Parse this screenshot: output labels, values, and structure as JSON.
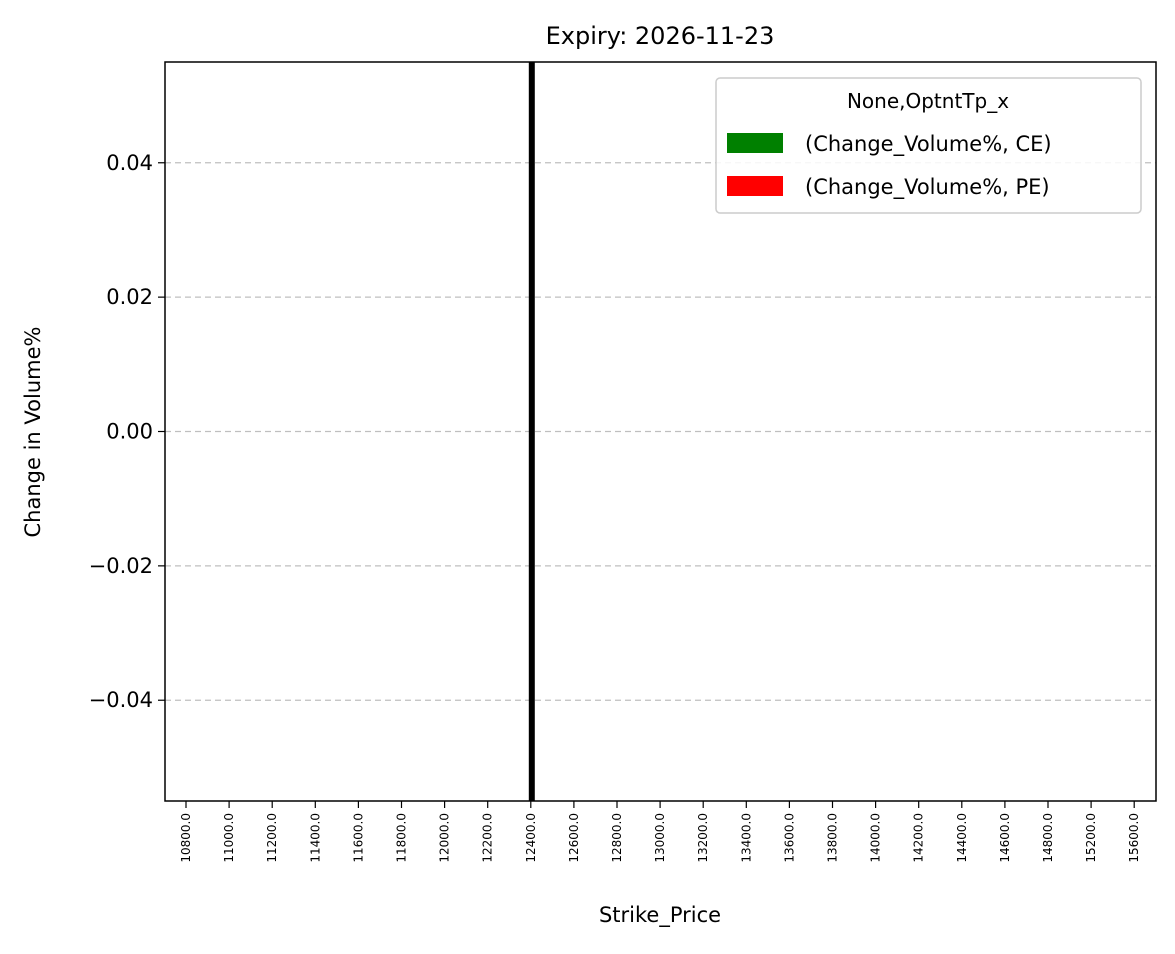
{
  "chart_data": {
    "type": "bar",
    "title": "Expiry: 2026-11-23",
    "xlabel": "Strike_Price",
    "ylabel": "Change in Volume%",
    "categories": [
      "10800.0",
      "11000.0",
      "11200.0",
      "11400.0",
      "11600.0",
      "11800.0",
      "12000.0",
      "12200.0",
      "12400.0",
      "12600.0",
      "12800.0",
      "13000.0",
      "13200.0",
      "13400.0",
      "13600.0",
      "13800.0",
      "14000.0",
      "14200.0",
      "14400.0",
      "14600.0",
      "14800.0",
      "15200.0",
      "15600.0"
    ],
    "series": [
      {
        "name": "(Change_Volume%, CE)",
        "color": "#008000",
        "values": [
          0,
          0,
          0,
          0,
          0,
          0,
          0,
          0,
          0,
          0,
          0,
          0,
          0,
          0,
          0,
          0,
          0,
          0,
          0,
          0,
          0,
          0,
          0
        ]
      },
      {
        "name": "(Change_Volume%, PE)",
        "color": "#ff0000",
        "values": [
          0,
          0,
          0,
          0,
          0,
          0,
          0,
          0,
          0,
          0,
          0,
          0,
          0,
          0,
          0,
          0,
          0,
          0,
          0,
          0,
          0,
          0,
          0
        ]
      }
    ],
    "ylim": [
      -0.055,
      0.055
    ],
    "yticks": [
      -0.04,
      -0.02,
      0.0,
      0.02,
      0.04
    ],
    "ytick_labels": [
      "−0.04",
      "−0.02",
      "0.00",
      "0.02",
      "0.04"
    ],
    "grid": "y-dashed",
    "legend": {
      "title": "None,OptntTp_x",
      "placement": "top-right"
    },
    "reference_line": {
      "x_category": "12400.0",
      "color": "#000000"
    }
  }
}
